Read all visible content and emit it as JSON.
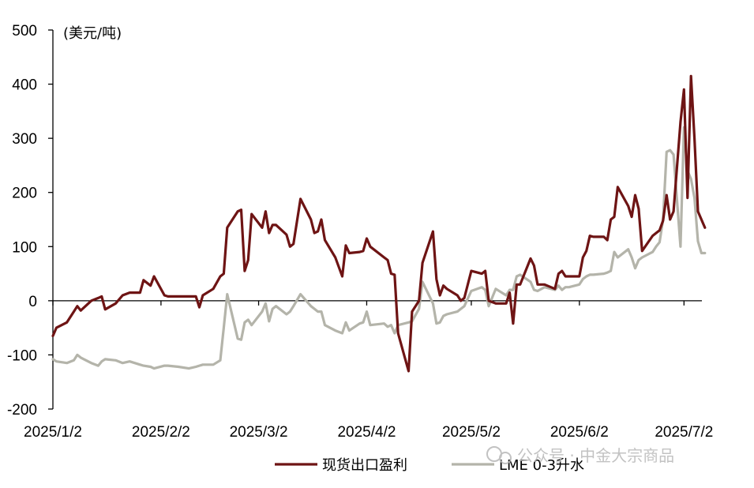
{
  "chart_data": {
    "type": "line",
    "title": "",
    "ylabel": "(美元/吨)",
    "xlabel": "",
    "ylim": [
      -200,
      500
    ],
    "yticks": [
      -200,
      -100,
      0,
      100,
      200,
      300,
      400,
      500
    ],
    "xlim": [
      "2025-01-02",
      "2025-07-06"
    ],
    "xticks": [
      "2025/1/2",
      "2025/2/2",
      "2025/3/2",
      "2025/4/2",
      "2025/5/2",
      "2025/6/2",
      "2025/7/2"
    ],
    "xtick_dates": [
      "2025-01-02",
      "2025-02-02",
      "2025-03-02",
      "2025-04-02",
      "2025-05-02",
      "2025-06-02",
      "2025-07-02"
    ],
    "grid": false,
    "legend_position": "bottom",
    "series": [
      {
        "name": "现货出口盈利",
        "color": "#6e1414",
        "points": [
          [
            "2025-01-02",
            -65
          ],
          [
            "2025-01-03",
            -50
          ],
          [
            "2025-01-06",
            -40
          ],
          [
            "2025-01-08",
            -20
          ],
          [
            "2025-01-09",
            -10
          ],
          [
            "2025-01-10",
            -18
          ],
          [
            "2025-01-13",
            0
          ],
          [
            "2025-01-15",
            5
          ],
          [
            "2025-01-16",
            8
          ],
          [
            "2025-01-17",
            -16
          ],
          [
            "2025-01-20",
            -5
          ],
          [
            "2025-01-22",
            10
          ],
          [
            "2025-01-24",
            15
          ],
          [
            "2025-01-27",
            15
          ],
          [
            "2025-01-28",
            38
          ],
          [
            "2025-01-30",
            28
          ],
          [
            "2025-01-31",
            45
          ],
          [
            "2025-02-03",
            10
          ],
          [
            "2025-02-04",
            8
          ],
          [
            "2025-02-07",
            8
          ],
          [
            "2025-02-10",
            8
          ],
          [
            "2025-02-12",
            8
          ],
          [
            "2025-02-13",
            -12
          ],
          [
            "2025-02-14",
            10
          ],
          [
            "2025-02-17",
            22
          ],
          [
            "2025-02-19",
            45
          ],
          [
            "2025-02-20",
            50
          ],
          [
            "2025-02-21",
            135
          ],
          [
            "2025-02-24",
            165
          ],
          [
            "2025-02-25",
            168
          ],
          [
            "2025-02-26",
            55
          ],
          [
            "2025-02-27",
            75
          ],
          [
            "2025-02-28",
            160
          ],
          [
            "2025-03-03",
            135
          ],
          [
            "2025-03-04",
            165
          ],
          [
            "2025-03-05",
            125
          ],
          [
            "2025-03-06",
            140
          ],
          [
            "2025-03-07",
            140
          ],
          [
            "2025-03-10",
            122
          ],
          [
            "2025-03-11",
            100
          ],
          [
            "2025-03-12",
            105
          ],
          [
            "2025-03-14",
            188
          ],
          [
            "2025-03-17",
            150
          ],
          [
            "2025-03-18",
            125
          ],
          [
            "2025-03-19",
            128
          ],
          [
            "2025-03-20",
            150
          ],
          [
            "2025-03-21",
            112
          ],
          [
            "2025-03-24",
            80
          ],
          [
            "2025-03-26",
            45
          ],
          [
            "2025-03-27",
            102
          ],
          [
            "2025-03-28",
            88
          ],
          [
            "2025-03-31",
            90
          ],
          [
            "2025-04-01",
            92
          ],
          [
            "2025-04-02",
            115
          ],
          [
            "2025-04-03",
            100
          ],
          [
            "2025-04-07",
            80
          ],
          [
            "2025-04-08",
            75
          ],
          [
            "2025-04-09",
            50
          ],
          [
            "2025-04-10",
            48
          ],
          [
            "2025-04-11",
            -60
          ],
          [
            "2025-04-14",
            -130
          ],
          [
            "2025-04-15",
            -20
          ],
          [
            "2025-04-17",
            0
          ],
          [
            "2025-04-18",
            70
          ],
          [
            "2025-04-21",
            128
          ],
          [
            "2025-04-22",
            40
          ],
          [
            "2025-04-23",
            10
          ],
          [
            "2025-04-24",
            28
          ],
          [
            "2025-04-25",
            22
          ],
          [
            "2025-04-28",
            10
          ],
          [
            "2025-04-29",
            0
          ],
          [
            "2025-04-30",
            5
          ],
          [
            "2025-05-02",
            55
          ],
          [
            "2025-05-05",
            50
          ],
          [
            "2025-05-06",
            55
          ],
          [
            "2025-05-07",
            0
          ],
          [
            "2025-05-09",
            -5
          ],
          [
            "2025-05-12",
            -5
          ],
          [
            "2025-05-13",
            15
          ],
          [
            "2025-05-14",
            -42
          ],
          [
            "2025-05-15",
            30
          ],
          [
            "2025-05-16",
            30
          ],
          [
            "2025-05-19",
            78
          ],
          [
            "2025-05-20",
            65
          ],
          [
            "2025-05-21",
            30
          ],
          [
            "2025-05-23",
            30
          ],
          [
            "2025-05-26",
            22
          ],
          [
            "2025-05-27",
            50
          ],
          [
            "2025-05-28",
            55
          ],
          [
            "2025-05-29",
            45
          ],
          [
            "2025-05-30",
            45
          ],
          [
            "2025-06-02",
            45
          ],
          [
            "2025-06-03",
            80
          ],
          [
            "2025-06-04",
            92
          ],
          [
            "2025-06-05",
            120
          ],
          [
            "2025-06-06",
            118
          ],
          [
            "2025-06-09",
            118
          ],
          [
            "2025-06-10",
            112
          ],
          [
            "2025-06-11",
            150
          ],
          [
            "2025-06-12",
            155
          ],
          [
            "2025-06-13",
            210
          ],
          [
            "2025-06-16",
            175
          ],
          [
            "2025-06-17",
            155
          ],
          [
            "2025-06-18",
            195
          ],
          [
            "2025-06-19",
            170
          ],
          [
            "2025-06-20",
            92
          ],
          [
            "2025-06-23",
            120
          ],
          [
            "2025-06-24",
            125
          ],
          [
            "2025-06-25",
            130
          ],
          [
            "2025-06-26",
            148
          ],
          [
            "2025-06-27",
            195
          ],
          [
            "2025-06-28",
            150
          ],
          [
            "2025-06-29",
            165
          ],
          [
            "2025-07-01",
            330
          ],
          [
            "2025-07-02",
            390
          ],
          [
            "2025-07-03",
            190
          ],
          [
            "2025-07-04",
            415
          ],
          [
            "2025-07-05",
            300
          ],
          [
            "2025-07-06",
            165
          ],
          [
            "2025-07-07",
            150
          ],
          [
            "2025-07-08",
            135
          ]
        ]
      },
      {
        "name": "LME 0-3升水",
        "color": "#b4b4aa",
        "points": [
          [
            "2025-01-02",
            -108
          ],
          [
            "2025-01-03",
            -112
          ],
          [
            "2025-01-06",
            -115
          ],
          [
            "2025-01-08",
            -110
          ],
          [
            "2025-01-09",
            -100
          ],
          [
            "2025-01-10",
            -105
          ],
          [
            "2025-01-13",
            -115
          ],
          [
            "2025-01-15",
            -120
          ],
          [
            "2025-01-16",
            -112
          ],
          [
            "2025-01-17",
            -108
          ],
          [
            "2025-01-20",
            -110
          ],
          [
            "2025-01-22",
            -115
          ],
          [
            "2025-01-24",
            -112
          ],
          [
            "2025-01-27",
            -118
          ],
          [
            "2025-01-28",
            -120
          ],
          [
            "2025-01-30",
            -122
          ],
          [
            "2025-01-31",
            -125
          ],
          [
            "2025-02-03",
            -120
          ],
          [
            "2025-02-04",
            -120
          ],
          [
            "2025-02-07",
            -122
          ],
          [
            "2025-02-10",
            -125
          ],
          [
            "2025-02-12",
            -122
          ],
          [
            "2025-02-13",
            -120
          ],
          [
            "2025-02-14",
            -118
          ],
          [
            "2025-02-17",
            -118
          ],
          [
            "2025-02-19",
            -110
          ],
          [
            "2025-02-20",
            -50
          ],
          [
            "2025-02-21",
            12
          ],
          [
            "2025-02-24",
            -70
          ],
          [
            "2025-02-25",
            -72
          ],
          [
            "2025-02-26",
            -40
          ],
          [
            "2025-02-27",
            -35
          ],
          [
            "2025-02-28",
            -45
          ],
          [
            "2025-03-03",
            -20
          ],
          [
            "2025-03-04",
            -5
          ],
          [
            "2025-03-05",
            -38
          ],
          [
            "2025-03-06",
            -15
          ],
          [
            "2025-03-07",
            -10
          ],
          [
            "2025-03-10",
            -25
          ],
          [
            "2025-03-11",
            -20
          ],
          [
            "2025-03-12",
            -10
          ],
          [
            "2025-03-14",
            12
          ],
          [
            "2025-03-17",
            -10
          ],
          [
            "2025-03-18",
            -15
          ],
          [
            "2025-03-19",
            -20
          ],
          [
            "2025-03-20",
            -20
          ],
          [
            "2025-03-21",
            -45
          ],
          [
            "2025-03-24",
            -55
          ],
          [
            "2025-03-26",
            -60
          ],
          [
            "2025-03-27",
            -40
          ],
          [
            "2025-03-28",
            -55
          ],
          [
            "2025-03-31",
            -42
          ],
          [
            "2025-04-01",
            -40
          ],
          [
            "2025-04-02",
            -20
          ],
          [
            "2025-04-03",
            -45
          ],
          [
            "2025-04-07",
            -42
          ],
          [
            "2025-04-08",
            -48
          ],
          [
            "2025-04-09",
            -45
          ],
          [
            "2025-04-10",
            -60
          ],
          [
            "2025-04-11",
            -45
          ],
          [
            "2025-04-14",
            -40
          ],
          [
            "2025-04-15",
            -38
          ],
          [
            "2025-04-17",
            -15
          ],
          [
            "2025-04-18",
            35
          ],
          [
            "2025-04-21",
            -5
          ],
          [
            "2025-04-22",
            -42
          ],
          [
            "2025-04-23",
            -40
          ],
          [
            "2025-04-24",
            -28
          ],
          [
            "2025-04-25",
            -25
          ],
          [
            "2025-04-28",
            -20
          ],
          [
            "2025-04-29",
            -15
          ],
          [
            "2025-04-30",
            -10
          ],
          [
            "2025-05-02",
            18
          ],
          [
            "2025-05-05",
            25
          ],
          [
            "2025-05-06",
            20
          ],
          [
            "2025-05-07",
            -10
          ],
          [
            "2025-05-09",
            22
          ],
          [
            "2025-05-12",
            10
          ],
          [
            "2025-05-13",
            20
          ],
          [
            "2025-05-14",
            20
          ],
          [
            "2025-05-15",
            45
          ],
          [
            "2025-05-16",
            48
          ],
          [
            "2025-05-19",
            35
          ],
          [
            "2025-05-20",
            20
          ],
          [
            "2025-05-21",
            18
          ],
          [
            "2025-05-23",
            25
          ],
          [
            "2025-05-26",
            20
          ],
          [
            "2025-05-27",
            28
          ],
          [
            "2025-05-28",
            20
          ],
          [
            "2025-05-29",
            25
          ],
          [
            "2025-05-30",
            25
          ],
          [
            "2025-06-02",
            30
          ],
          [
            "2025-06-03",
            40
          ],
          [
            "2025-06-04",
            45
          ],
          [
            "2025-06-05",
            48
          ],
          [
            "2025-06-06",
            48
          ],
          [
            "2025-06-09",
            50
          ],
          [
            "2025-06-10",
            52
          ],
          [
            "2025-06-11",
            55
          ],
          [
            "2025-06-12",
            90
          ],
          [
            "2025-06-13",
            80
          ],
          [
            "2025-06-16",
            95
          ],
          [
            "2025-06-17",
            80
          ],
          [
            "2025-06-18",
            60
          ],
          [
            "2025-06-19",
            75
          ],
          [
            "2025-06-20",
            80
          ],
          [
            "2025-06-23",
            90
          ],
          [
            "2025-06-24",
            100
          ],
          [
            "2025-06-25",
            108
          ],
          [
            "2025-06-26",
            150
          ],
          [
            "2025-06-27",
            275
          ],
          [
            "2025-06-28",
            278
          ],
          [
            "2025-06-29",
            270
          ],
          [
            "2025-07-01",
            100
          ],
          [
            "2025-07-02",
            320
          ],
          [
            "2025-07-03",
            240
          ],
          [
            "2025-07-04",
            225
          ],
          [
            "2025-07-05",
            190
          ],
          [
            "2025-07-06",
            110
          ],
          [
            "2025-07-07",
            88
          ],
          [
            "2025-07-08",
            88
          ]
        ]
      }
    ]
  },
  "watermark": {
    "text": "公众号 · 中金大宗商品"
  }
}
